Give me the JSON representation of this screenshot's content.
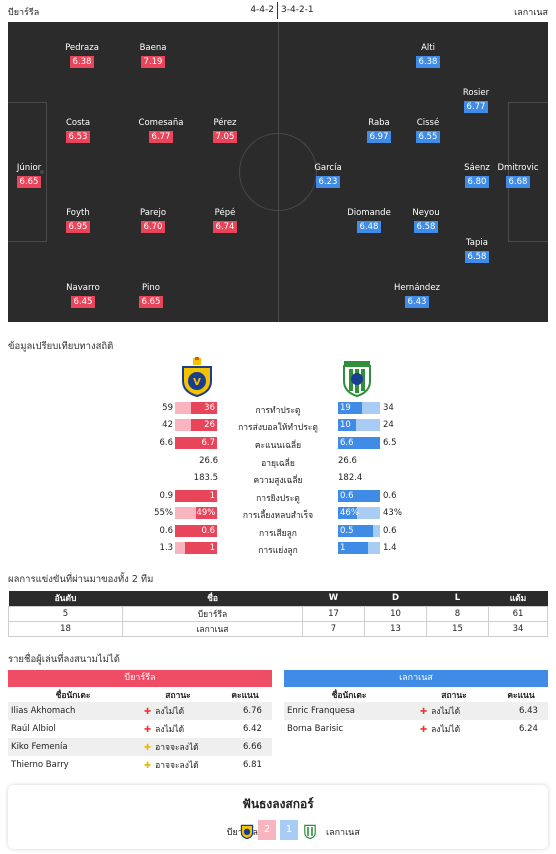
{
  "header": {
    "home_team": "บียาร์รีล",
    "away_team": "เลกาเนส",
    "home_formation": "4-4-2",
    "away_formation": "3-4-2-1"
  },
  "lineup": {
    "home": [
      {
        "name": "Pedraza",
        "rating": "6.38"
      },
      {
        "name": "Baena",
        "rating": "7.19"
      },
      {
        "name": "Costa",
        "rating": "6.53"
      },
      {
        "name": "Comesaña",
        "rating": "6.77"
      },
      {
        "name": "Pérez",
        "rating": "7.05"
      },
      {
        "name": "Júnior",
        "rating": "6.65"
      },
      {
        "name": "Foyth",
        "rating": "6.95"
      },
      {
        "name": "Parejo",
        "rating": "6.70"
      },
      {
        "name": "Pépé",
        "rating": "6.74"
      },
      {
        "name": "Navarro",
        "rating": "6.45"
      },
      {
        "name": "Pino",
        "rating": "6.65"
      }
    ],
    "away": [
      {
        "name": "Alti",
        "rating": "6.38"
      },
      {
        "name": "Rosier",
        "rating": "6.77"
      },
      {
        "name": "Raba",
        "rating": "6.97"
      },
      {
        "name": "Cissé",
        "rating": "6.55"
      },
      {
        "name": "García",
        "rating": "6.23"
      },
      {
        "name": "Sáenz",
        "rating": "6.80"
      },
      {
        "name": "Dmitrovic",
        "rating": "6.68"
      },
      {
        "name": "Diomande",
        "rating": "6.48"
      },
      {
        "name": "Neyou",
        "rating": "6.58"
      },
      {
        "name": "Tapia",
        "rating": "6.58"
      },
      {
        "name": "Hernández",
        "rating": "6.43"
      }
    ]
  },
  "comparison": {
    "title": "ข้อมูลเปรียบเทียบทางสถิติ",
    "rows": [
      {
        "label": "การทำประตู",
        "home_total": "59",
        "home_bar": "36",
        "away_bar": "19",
        "away_total": "34",
        "home_frac": 0.61,
        "away_frac": 0.56
      },
      {
        "label": "การส่งบอลให้ทำประตู",
        "home_total": "42",
        "home_bar": "26",
        "away_bar": "10",
        "away_total": "24",
        "home_frac": 0.62,
        "away_frac": 0.42
      },
      {
        "label": "คะแนนเฉลี่ย",
        "home_total": "6.6",
        "home_bar": "6.7",
        "away_bar": "6.6",
        "away_total": "6.5",
        "home_frac": 1.0,
        "away_frac": 1.0
      },
      {
        "label": "อายุเฉลี่ย",
        "home_plain": "26.6",
        "away_plain": "26.6"
      },
      {
        "label": "ความสูงเฉลี่ย",
        "home_plain": "183.5",
        "away_plain": "182.4"
      },
      {
        "label": "การยิงประตู",
        "home_total": "0.9",
        "home_bar": "1",
        "away_bar": "0.6",
        "away_total": "0.6",
        "home_frac": 1.0,
        "away_frac": 1.0
      },
      {
        "label": "การเลี้ยงหลบสำเร็จ",
        "home_total": "55%",
        "home_bar": "49%",
        "away_bar": "46%",
        "away_total": "43%",
        "home_frac": 0.49,
        "away_frac": 0.46
      },
      {
        "label": "การเสียลูก",
        "home_total": "0.6",
        "home_bar": "0.6",
        "away_bar": "0.5",
        "away_total": "0.6",
        "home_frac": 1.0,
        "away_frac": 0.83
      },
      {
        "label": "การแย่งลูก",
        "home_total": "1.3",
        "home_bar": "1",
        "away_bar": "1",
        "away_total": "1.4",
        "home_frac": 0.77,
        "away_frac": 0.71
      }
    ]
  },
  "standings": {
    "title": "ผลการแข่งขันที่ผ่านมาของทั้ง 2 ทีม",
    "headers": [
      "อันดับ",
      "ชื่อ",
      "W",
      "D",
      "L",
      "แต้ม"
    ],
    "rows": [
      [
        "5",
        "บียาร์รีล",
        "17",
        "10",
        "8",
        "61"
      ],
      [
        "18",
        "เลกาเนส",
        "7",
        "13",
        "15",
        "34"
      ]
    ]
  },
  "injuries": {
    "title": "รายชื่อผู้เล่นที่ลงสนามไม่ได้",
    "col_name": "ชื่อนักเตะ",
    "col_status": "สถานะ",
    "col_score": "คะแนน",
    "home": {
      "team": "บียาร์รีล",
      "players": [
        {
          "name": "Ilias Akhomach",
          "status": "ลงไม่ได้",
          "type": "out",
          "score": "6.76"
        },
        {
          "name": "Raúl Albiol",
          "status": "ลงไม่ได้",
          "type": "out",
          "score": "6.42"
        },
        {
          "name": "Kiko Femenía",
          "status": "อาจจะลงได้",
          "type": "doubt",
          "score": "6.66"
        },
        {
          "name": "Thierno Barry",
          "status": "อาจจะลงได้",
          "type": "doubt",
          "score": "6.81"
        }
      ]
    },
    "away": {
      "team": "เลกาเนส",
      "players": [
        {
          "name": "Enric Franquesa",
          "status": "ลงไม่ได้",
          "type": "out",
          "score": "6.43"
        },
        {
          "name": "Borna Barisic",
          "status": "ลงไม่ได้",
          "type": "out",
          "score": "6.24"
        }
      ]
    }
  },
  "form": {
    "title": "ฟันธงลงสกอร์",
    "home_team": "บียาร์รีล",
    "away_team": "เลกาเนส",
    "home_score": "2",
    "away_score": "1"
  },
  "colors": {
    "home": "#e8445a",
    "away": "#3f8be6"
  }
}
